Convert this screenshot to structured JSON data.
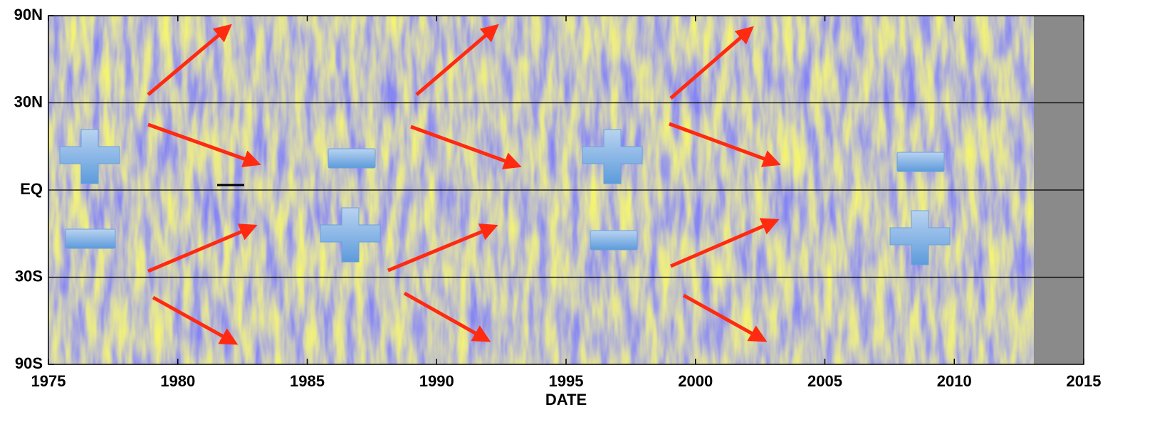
{
  "chart_data": {
    "type": "heatmap",
    "x_label": "DATE",
    "xlim": [
      1975,
      2015
    ],
    "xticks": [
      1975,
      1980,
      1985,
      1990,
      1995,
      2000,
      2005,
      2010,
      2015
    ],
    "ylim": [
      -90,
      90
    ],
    "yticks": [
      {
        "value": -90,
        "label": "90S"
      },
      {
        "value": -30,
        "label": "30S"
      },
      {
        "value": 0,
        "label": "EQ"
      },
      {
        "value": 30,
        "label": "30N"
      },
      {
        "value": 90,
        "label": "90N"
      }
    ],
    "y_scale": "sine",
    "grid": true
  }
}
